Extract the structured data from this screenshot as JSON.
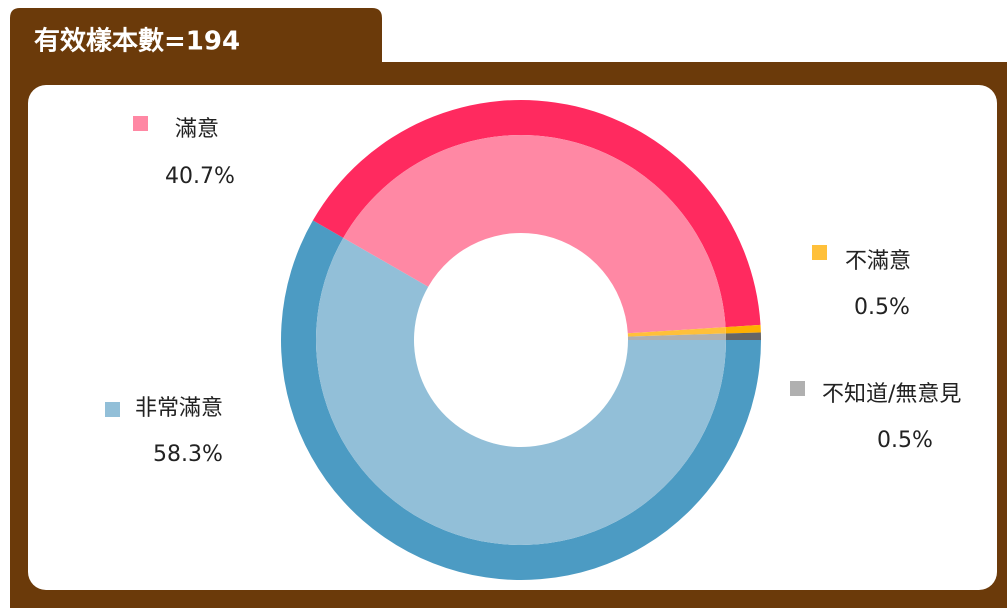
{
  "chart_data": {
    "type": "donut",
    "title": "有效樣本數=194",
    "categories": [
      "非常滿意",
      "滿意",
      "不滿意",
      "不知道/無意見"
    ],
    "values": [
      58.3,
      40.7,
      0.5,
      0.5
    ],
    "value_labels": [
      "58.3%",
      "40.7%",
      "0.5%",
      "0.5%"
    ],
    "colors": [
      "#4c9bc3",
      "#ff2a5f",
      "#ffb000",
      "#666666"
    ],
    "light_colors": [
      "#92bfd8",
      "#ff88a4",
      "#ffc03a",
      "#b0b0b0"
    ]
  }
}
